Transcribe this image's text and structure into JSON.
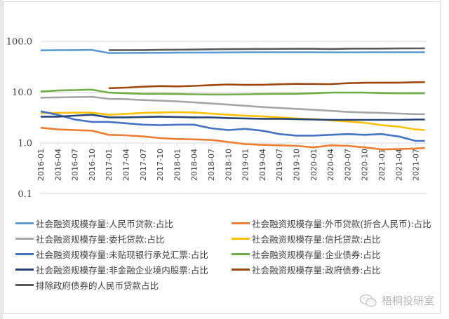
{
  "chart_data": {
    "type": "line",
    "title": "",
    "xlabel": "",
    "ylabel": "",
    "y_scale": "log",
    "ylim": [
      0.1,
      100
    ],
    "y_ticks": [
      "100.0",
      "10.0",
      "1.0",
      "0.1"
    ],
    "grid": true,
    "legend_position": "bottom",
    "x": [
      "2016-01",
      "2016-04",
      "2016-07",
      "2016-10",
      "2017-01",
      "2017-04",
      "2017-07",
      "2017-10",
      "2018-01",
      "2018-04",
      "2018-07",
      "2018-10",
      "2019-01",
      "2019-04",
      "2019-07",
      "2019-10",
      "2020-01",
      "2020-04",
      "2020-07",
      "2020-10",
      "2021-01",
      "2021-04",
      "2021-07",
      "2021-08"
    ],
    "series": [
      {
        "name": "社会融资规模存量:人民币贷款:占比",
        "color": "#5b9bd5",
        "values": [
          66.5,
          67.0,
          67.5,
          67.8,
          59.0,
          59.2,
          59.5,
          59.6,
          59.9,
          60.1,
          60.4,
          60.6,
          60.9,
          61.0,
          61.0,
          61.0,
          61.0,
          60.8,
          60.8,
          60.9,
          60.9,
          61.0,
          61.0,
          61.0
        ]
      },
      {
        "name": "社会融资规模存量:外币贷款(折合人民币):占比",
        "color": "#ed7d31",
        "values": [
          2.0,
          1.85,
          1.8,
          1.75,
          1.45,
          1.42,
          1.35,
          1.25,
          1.2,
          1.18,
          1.15,
          1.05,
          0.95,
          0.92,
          0.9,
          0.88,
          0.82,
          0.9,
          0.88,
          0.82,
          0.75,
          0.76,
          0.78,
          0.8
        ]
      },
      {
        "name": "社会融资规模存量:委托贷款:占比",
        "color": "#a5a5a5",
        "values": [
          7.8,
          7.9,
          8.0,
          8.1,
          7.4,
          7.3,
          7.0,
          6.8,
          6.6,
          6.3,
          6.0,
          5.7,
          5.4,
          5.1,
          4.9,
          4.7,
          4.5,
          4.3,
          4.1,
          4.0,
          3.9,
          3.8,
          3.7,
          3.7
        ]
      },
      {
        "name": "社会融资规模存量:信托贷款:占比",
        "color": "#ffc000",
        "values": [
          3.9,
          3.9,
          3.95,
          3.95,
          3.6,
          3.75,
          3.9,
          4.0,
          4.05,
          4.0,
          3.8,
          3.6,
          3.45,
          3.35,
          3.2,
          3.05,
          2.95,
          2.8,
          2.65,
          2.5,
          2.25,
          2.1,
          1.85,
          1.8
        ]
      },
      {
        "name": "社会融资规模存量:未贴现银行承兑汇票:占比",
        "color": "#4472c4",
        "values": [
          4.2,
          3.6,
          2.9,
          2.6,
          2.6,
          2.45,
          2.3,
          2.25,
          2.3,
          2.3,
          1.95,
          1.8,
          1.9,
          1.75,
          1.5,
          1.4,
          1.4,
          1.45,
          1.5,
          1.45,
          1.5,
          1.35,
          1.1,
          1.1
        ]
      },
      {
        "name": "社会融资规模存量:企业债券:占比",
        "color": "#70ad47",
        "values": [
          10.3,
          10.8,
          11.0,
          11.2,
          9.8,
          9.5,
          9.3,
          9.3,
          9.2,
          9.1,
          9.0,
          9.0,
          9.1,
          9.2,
          9.3,
          9.3,
          9.5,
          9.8,
          9.8,
          9.8,
          9.6,
          9.5,
          9.5,
          9.5
        ]
      },
      {
        "name": "社会融资规模存量:非金融企业境内股票:占比",
        "color": "#264478",
        "values": [
          3.3,
          3.3,
          3.45,
          3.6,
          3.2,
          3.2,
          3.25,
          3.3,
          3.25,
          3.2,
          3.2,
          3.1,
          3.05,
          3.0,
          3.0,
          2.95,
          2.9,
          2.85,
          2.85,
          2.85,
          2.85,
          2.85,
          2.9,
          2.9
        ]
      },
      {
        "name": "社会融资规模存量:政府债券:占比",
        "color": "#9e480e",
        "values": [
          null,
          null,
          null,
          null,
          12.0,
          12.3,
          12.8,
          13.2,
          13.0,
          13.3,
          13.8,
          14.2,
          13.9,
          14.0,
          14.3,
          14.6,
          14.5,
          14.4,
          15.0,
          15.3,
          15.4,
          15.4,
          15.7,
          15.8
        ]
      },
      {
        "name": "排除政府债券的人民币贷款占比",
        "color": "#595959",
        "values": [
          null,
          null,
          null,
          null,
          67.0,
          67.2,
          67.5,
          68.0,
          68.5,
          69.0,
          69.8,
          70.2,
          70.7,
          71.0,
          71.3,
          71.5,
          71.5,
          70.8,
          71.8,
          72.0,
          72.2,
          72.5,
          72.8,
          73.0
        ]
      }
    ]
  },
  "legend": {
    "items": [
      {
        "label": "社会融资规模存量:人民币贷款:占比",
        "color": "#5b9bd5"
      },
      {
        "label": "社会融资规模存量:外币贷款(折合人民币):占比",
        "color": "#ed7d31"
      },
      {
        "label": "社会融资规模存量:委托贷款:占比",
        "color": "#a5a5a5"
      },
      {
        "label": "社会融资规模存量:信托贷款:占比",
        "color": "#ffc000"
      },
      {
        "label": "社会融资规模存量:未贴现银行承兑汇票:占比",
        "color": "#4472c4"
      },
      {
        "label": "社会融资规模存量:企业债券:占比",
        "color": "#70ad47"
      },
      {
        "label": "社会融资规模存量:非金融企业境内股票:占比",
        "color": "#264478"
      },
      {
        "label": "社会融资规模存量:政府债券:占比",
        "color": "#9e480e"
      },
      {
        "label": "排除政府债券的人民币贷款占比",
        "color": "#595959"
      }
    ]
  },
  "watermark": {
    "text": "梧桐投研室",
    "icon": "wechat-icon"
  }
}
